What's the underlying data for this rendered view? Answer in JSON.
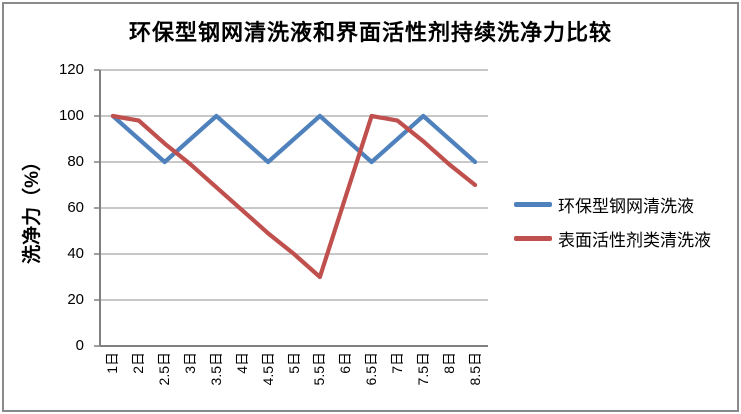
{
  "frame": {
    "border_color": "#8a8a8a",
    "background": "#ffffff"
  },
  "chart_data": {
    "type": "line",
    "title": "环保型钢网清洗液和界面活性剂持续洗净力比较",
    "xlabel": "",
    "ylabel": "洗净力（%）",
    "ylim": [
      0,
      120
    ],
    "yticks": [
      0,
      20,
      40,
      60,
      80,
      100,
      120
    ],
    "grid": "horizontal-only",
    "gridline_color": "#a6a6a6",
    "axis_color": "#808080",
    "legend_position": "right",
    "categories": [
      "1日",
      "2日",
      "2.5日",
      "3日",
      "3.5日",
      "4日",
      "4.5日",
      "5日",
      "5.5日",
      "6日",
      "6.5日",
      "7日",
      "7.5日",
      "8日",
      "8.5日"
    ],
    "series": [
      {
        "name": "环保型钢网清洗液",
        "color": "#4F81BD",
        "values": [
          100,
          90,
          80,
          90,
          100,
          90,
          80,
          90,
          100,
          90,
          80,
          90,
          100,
          90,
          80
        ]
      },
      {
        "name": "表面活性剂类清洗液",
        "color": "#C0504D",
        "values": [
          100,
          98,
          88,
          79,
          69,
          59,
          49,
          40,
          30,
          65,
          100,
          98,
          89,
          79,
          70
        ]
      }
    ]
  }
}
